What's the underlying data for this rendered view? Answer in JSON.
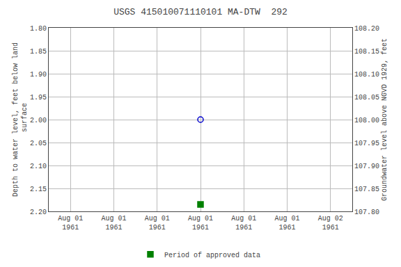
{
  "chart_data": {
    "type": "scatter",
    "title": "USGS 415010071110101 MA-DTW  292",
    "y_label": "Depth to water level, feet below land\n surface",
    "y2_label": "Groundwater level above NGVD 1929, feet",
    "categories": [
      "Aug 01\n1961",
      "Aug 01\n1961",
      "Aug 01\n1961",
      "Aug 01\n1961",
      "Aug 01\n1961",
      "Aug 01\n1961",
      "Aug 02\n1961"
    ],
    "series": [
      {
        "values": [
          null,
          null,
          null,
          2.0,
          null,
          null,
          null
        ],
        "color": "#0000cc",
        "marker": "circle-open"
      },
      {
        "name": "Period of approved data",
        "values": [
          null,
          null,
          null,
          2.185,
          null,
          null,
          null
        ],
        "color": "#008000",
        "marker": "square"
      }
    ],
    "ylim": [
      2.2,
      1.8
    ],
    "yticks": [
      {
        "value": 1.8,
        "label": "1.80"
      },
      1.85,
      {
        "value": 1.9,
        "label": "1.90"
      },
      1.95,
      {
        "value": 2.0,
        "label": "2.00"
      },
      2.05,
      {
        "value": 2.1,
        "label": "2.10"
      },
      2.15,
      {
        "value": 2.2,
        "label": "2.20"
      }
    ],
    "y2lim": [
      107.8,
      108.2
    ],
    "y2ticks": [
      {
        "value": 108.2,
        "label": "108.20"
      },
      108.15,
      {
        "value": 108.1,
        "label": "108.10"
      },
      108.05,
      {
        "value": 108.0,
        "label": "108.00"
      },
      107.95,
      {
        "value": 107.9,
        "label": "107.90"
      },
      107.85,
      {
        "value": 107.8,
        "label": "107.80"
      }
    ],
    "grid": true,
    "legend": "bottom",
    "background_color": "#ffffff",
    "grid_color": "#bbbbbb"
  }
}
